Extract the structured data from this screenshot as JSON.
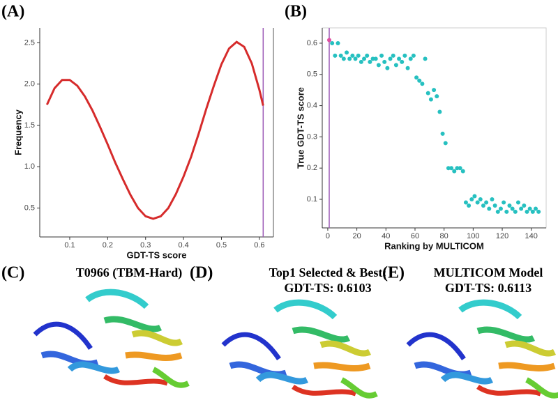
{
  "chart_data": [
    {
      "type": "line",
      "panel": "(A)",
      "xlabel": "GDT-TS score",
      "ylabel": "Frequency",
      "x": [
        0.04,
        0.06,
        0.08,
        0.1,
        0.12,
        0.14,
        0.16,
        0.18,
        0.2,
        0.22,
        0.24,
        0.26,
        0.28,
        0.3,
        0.32,
        0.34,
        0.36,
        0.38,
        0.4,
        0.42,
        0.44,
        0.46,
        0.48,
        0.5,
        0.52,
        0.54,
        0.56,
        0.58,
        0.6,
        0.61
      ],
      "series": [
        {
          "color": "#d62b2b",
          "values": [
            1.75,
            1.95,
            2.05,
            2.05,
            1.98,
            1.85,
            1.68,
            1.48,
            1.27,
            1.05,
            0.85,
            0.66,
            0.5,
            0.4,
            0.37,
            0.4,
            0.5,
            0.67,
            0.88,
            1.12,
            1.4,
            1.7,
            1.98,
            2.24,
            2.43,
            2.51,
            2.45,
            2.25,
            1.93,
            1.74
          ]
        }
      ],
      "vline": 0.61,
      "vline_color": "#9b59b6",
      "xlim": [
        0.021,
        0.637
      ],
      "xticks": [
        0.1,
        0.2,
        0.3,
        0.4,
        0.5,
        0.6
      ],
      "ylim": [
        0.15,
        2.68
      ],
      "yticks": [
        0.5,
        {
          "value": 1,
          "label": "1.0"
        },
        1.5,
        {
          "value": 2,
          "label": "2.0"
        },
        2.5
      ]
    },
    {
      "type": "scatter",
      "panel": "(B)",
      "xlabel": "Ranking by MULTICOM",
      "ylabel": "True GDT-TS score",
      "series": [
        {
          "color": "#26c0c0",
          "x": [
            3,
            5,
            7,
            9,
            11,
            13,
            15,
            17,
            19,
            21,
            23,
            25,
            27,
            29,
            31,
            33,
            35,
            37,
            39,
            41,
            43,
            45,
            47,
            49,
            51,
            53,
            55,
            57,
            59,
            61,
            63,
            65,
            67,
            69,
            71,
            73,
            75,
            77,
            79,
            81,
            83,
            85,
            87,
            89,
            91,
            93,
            95,
            97,
            99,
            101,
            103,
            105,
            107,
            109,
            111,
            113,
            115,
            117,
            119,
            121,
            123,
            125,
            127,
            129,
            131,
            133,
            135,
            137,
            139,
            141,
            143,
            145
          ],
          "values": [
            0.6,
            0.56,
            0.6,
            0.56,
            0.55,
            0.57,
            0.55,
            0.56,
            0.55,
            0.56,
            0.54,
            0.55,
            0.56,
            0.54,
            0.55,
            0.55,
            0.53,
            0.56,
            0.54,
            0.52,
            0.55,
            0.56,
            0.53,
            0.55,
            0.54,
            0.56,
            0.52,
            0.55,
            0.56,
            0.49,
            0.48,
            0.47,
            0.55,
            0.44,
            0.42,
            0.45,
            0.43,
            0.38,
            0.31,
            0.28,
            0.2,
            0.2,
            0.19,
            0.2,
            0.2,
            0.19,
            0.09,
            0.08,
            0.1,
            0.11,
            0.09,
            0.1,
            0.08,
            0.09,
            0.07,
            0.1,
            0.08,
            0.06,
            0.07,
            0.09,
            0.06,
            0.08,
            0.07,
            0.06,
            0.09,
            0.07,
            0.08,
            0.06,
            0.07,
            0.06,
            0.07,
            0.06
          ]
        },
        {
          "color": "#e04fa0",
          "x": [
            1
          ],
          "values": [
            0.61
          ]
        }
      ],
      "vline": 1,
      "vline_color": "#9b59b6",
      "xlim": [
        -3.8,
        150.2
      ],
      "xticks": [
        0,
        20,
        40,
        60,
        80,
        100,
        120,
        140
      ],
      "ylim": [
        0.0085,
        0.649
      ],
      "yticks": [
        0.1,
        0.2,
        0.3,
        0.4,
        0.5,
        0.6
      ]
    }
  ],
  "panels": [
    {
      "label": "(C)",
      "title": [
        "T0966 (TBM-Hard)"
      ]
    },
    {
      "label": "(D)",
      "title": [
        "Top1 Selected & Best:",
        "GDT-TS: 0.6103"
      ]
    },
    {
      "label": "(E)",
      "title": [
        "MULTICOM Model",
        "GDT-TS: 0.6113"
      ]
    }
  ]
}
